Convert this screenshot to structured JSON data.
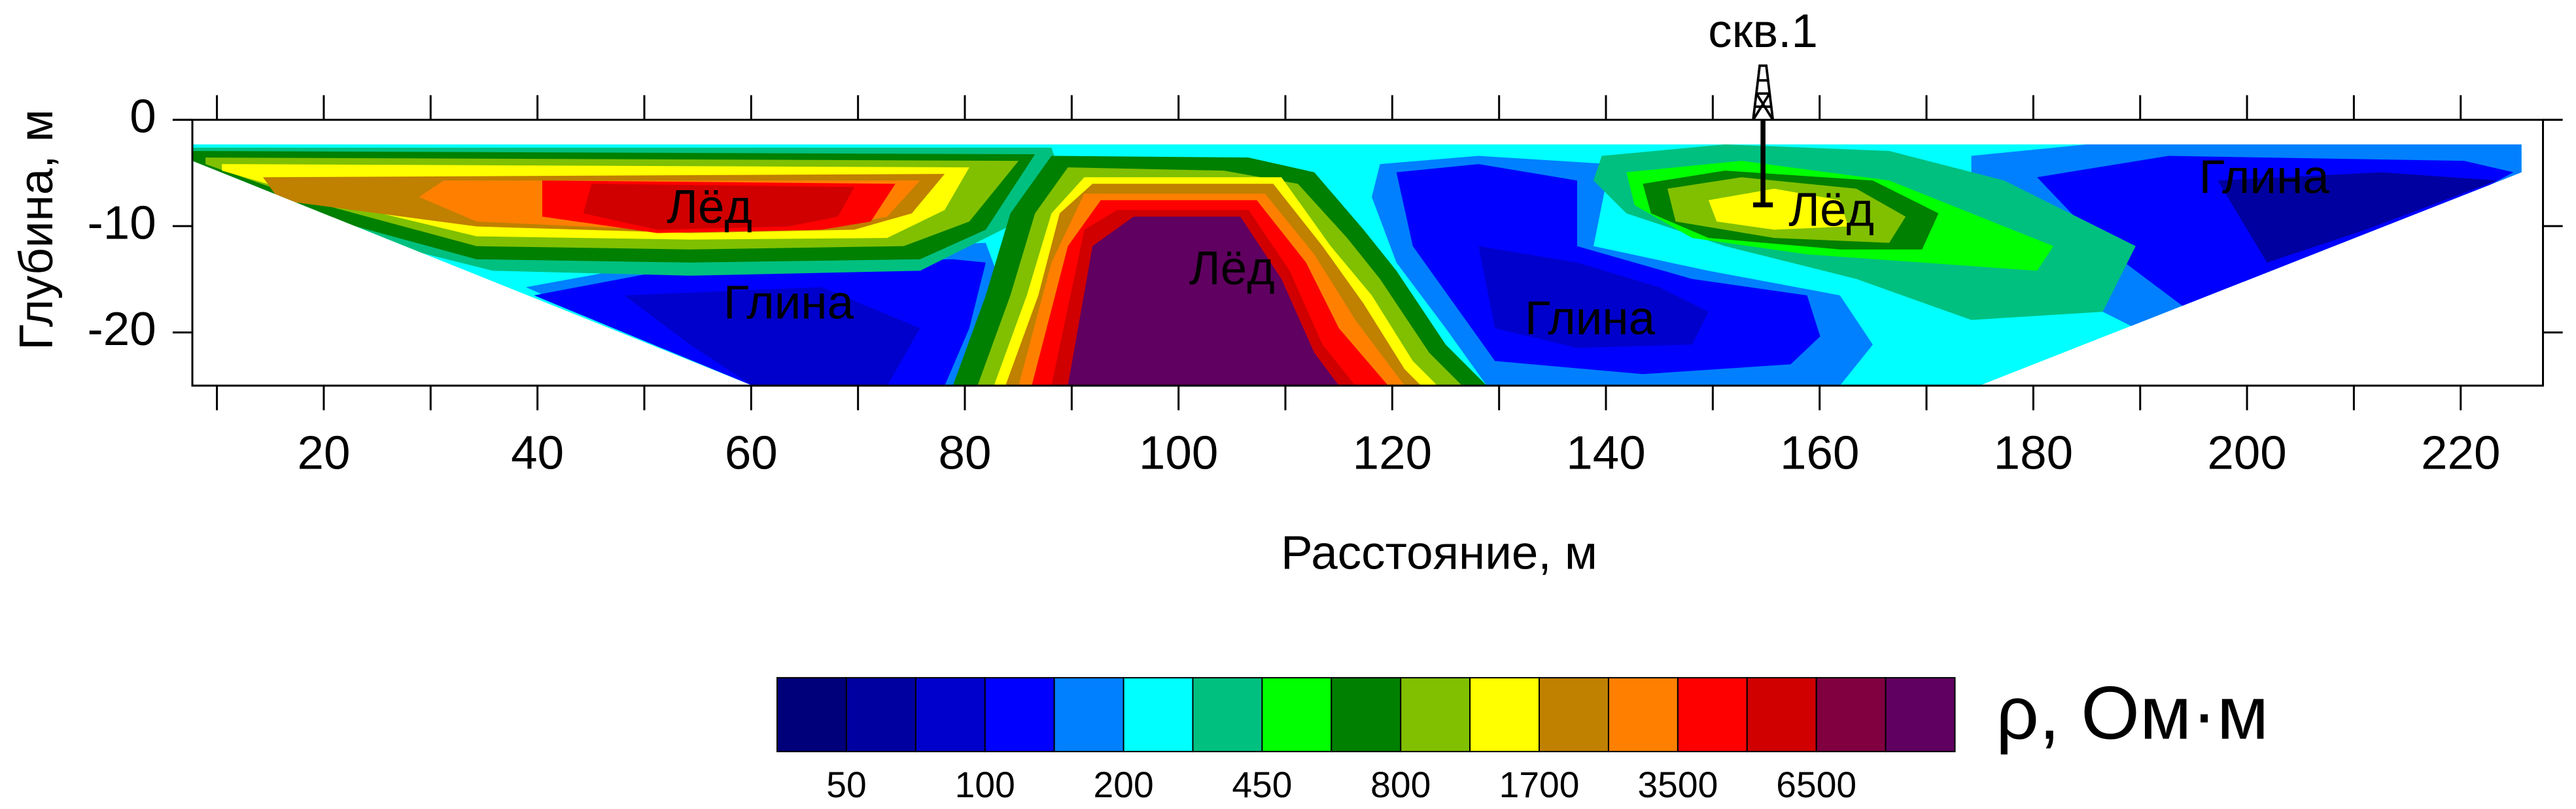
{
  "chart_data": {
    "type": "contour",
    "xlabel": "Расстояние, м",
    "ylabel": "Глубина, м",
    "xlim": [
      7.7,
      227.7
    ],
    "ylim": [
      -25,
      0
    ],
    "xticks": [
      20,
      40,
      60,
      80,
      100,
      120,
      140,
      160,
      180,
      200,
      220
    ],
    "xminorticks": [
      10,
      30,
      50,
      70,
      90,
      110,
      130,
      150,
      170,
      190,
      210
    ],
    "yticks": [
      0,
      -10,
      -20
    ],
    "annotations": [
      {
        "text": "Лёд",
        "x": 56.1,
        "y": -8.5,
        "color": "#000000"
      },
      {
        "text": "Глина",
        "x": 63.5,
        "y": -17.5,
        "color": "#ffffff"
      },
      {
        "text": "Лёд",
        "x": 105.0,
        "y": -14.3,
        "color": "#000000"
      },
      {
        "text": "Глина",
        "x": 138.5,
        "y": -19.0,
        "color": "#ffffff"
      },
      {
        "text": "Лёд",
        "x": 161.1,
        "y": -8.8,
        "color": "#000000"
      },
      {
        "text": "Глина",
        "x": 201.6,
        "y": -5.7,
        "color": "#ffffff"
      }
    ],
    "well": {
      "label": "скв.1",
      "x": 154.7,
      "depth": -8
    },
    "colorbar": {
      "label": "ρ, Ом·м",
      "colors": [
        "#00007a",
        "#0000a0",
        "#0000cc",
        "#0000ff",
        "#0080ff",
        "#00ffff",
        "#00c080",
        "#00ff00",
        "#008000",
        "#80c000",
        "#ffff00",
        "#c08000",
        "#ff8000",
        "#ff0000",
        "#d00000",
        "#800040",
        "#600060"
      ],
      "ticks": [
        50,
        100,
        200,
        450,
        800,
        1700,
        3500,
        6500
      ]
    }
  }
}
